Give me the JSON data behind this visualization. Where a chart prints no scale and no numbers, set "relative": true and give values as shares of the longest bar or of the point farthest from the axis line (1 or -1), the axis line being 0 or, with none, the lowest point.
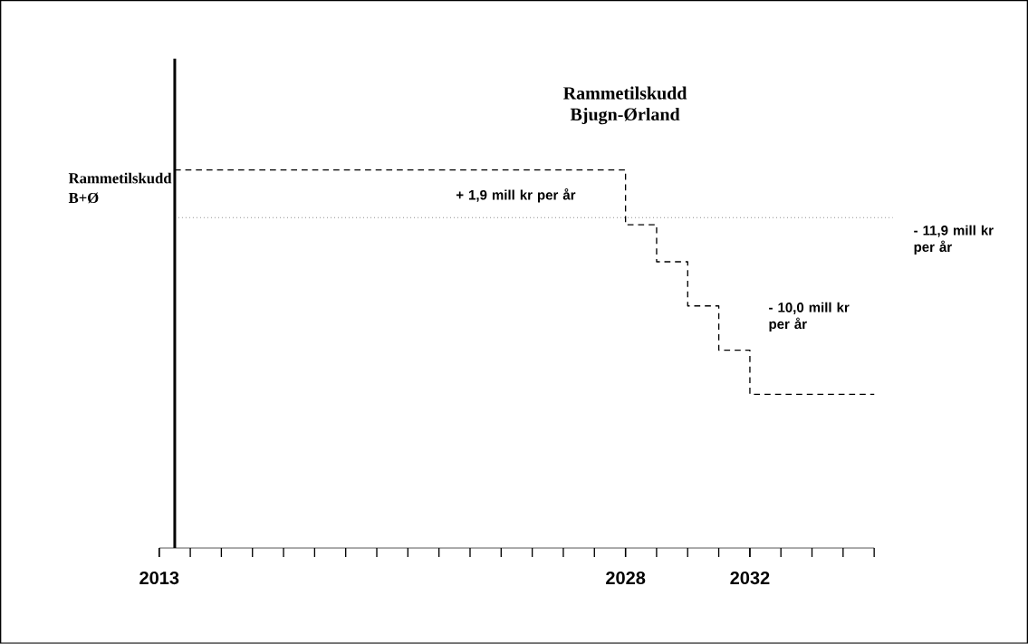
{
  "chart_data": {
    "type": "step",
    "title": "Rammetilskudd Bjugn-Ørland",
    "ylabel": "Rammetilskudd B+Ø",
    "relative": true,
    "line_style": "dashed",
    "x": [
      2013.5,
      2028,
      2029,
      2030,
      2031,
      2032,
      2036
    ],
    "series": [
      {
        "color": "#000000",
        "values": [
          0.27,
          -0.04,
          -0.25,
          -0.5,
          -0.75,
          -1,
          -1
        ]
      }
    ],
    "xlim": [
      2013,
      2036
    ],
    "xticks": [
      2013,
      2028,
      2032
    ],
    "ref_lines": [
      {
        "axis": "y",
        "value": 0,
        "line_style": "dotted"
      },
      {
        "axis": "x",
        "value": 2013.5,
        "line_style": "solid",
        "color": "#000000"
      }
    ],
    "annotations": [
      "+ 1,9 mill kr per år",
      "- 10,0 mill kr per år",
      "- 11,9 mill kr per år"
    ]
  }
}
